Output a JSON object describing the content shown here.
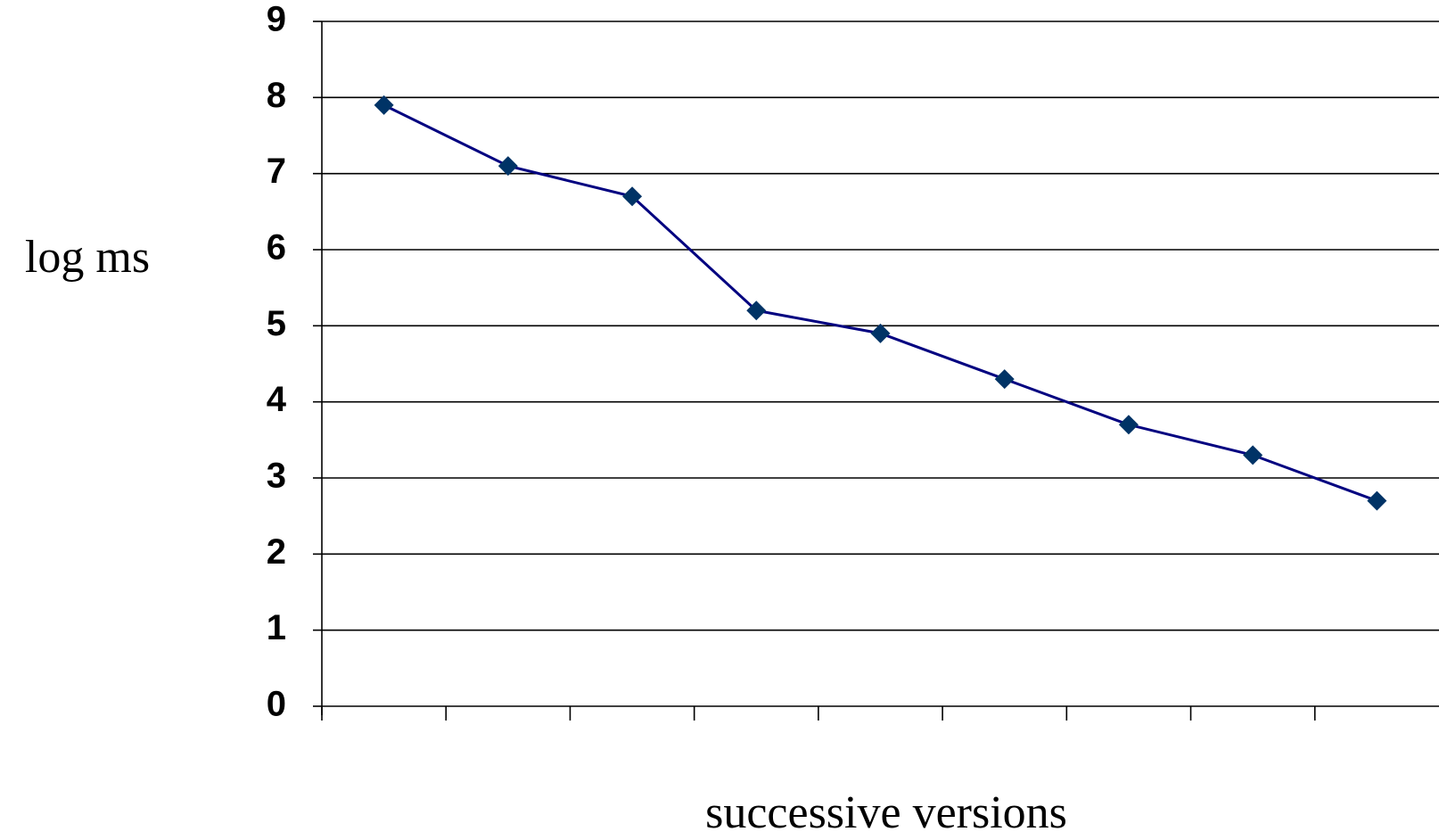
{
  "chart_data": {
    "type": "line",
    "ylabel": "log ms",
    "xlabel": "successive versions",
    "categories": [
      null,
      null,
      null,
      null,
      null,
      null,
      null,
      null,
      null
    ],
    "values": [
      7.9,
      7.1,
      6.7,
      5.2,
      4.9,
      4.3,
      3.7,
      3.3,
      2.7
    ],
    "color": "#000080",
    "marker_color": "#003366",
    "ylim": [
      0,
      9
    ],
    "yticks": [
      0,
      1,
      2,
      3,
      4,
      5,
      6,
      7,
      8,
      9
    ],
    "grid": true
  }
}
